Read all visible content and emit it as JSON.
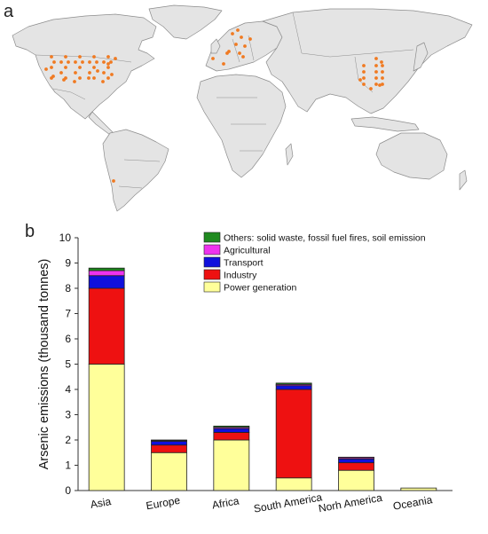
{
  "panel_a_label": "a",
  "panel_b_label": "b",
  "colors": {
    "land": "#e4e4e4",
    "border": "#8c8c8c",
    "site_dot": "#f07a22"
  },
  "chart_data": {
    "type": "bar",
    "stacked": true,
    "categories": [
      "Asia",
      "Europe",
      "Africa",
      "South America",
      "Norh America",
      "Oceania"
    ],
    "ylabel": "Arsenic emissions (thousand tonnes)",
    "xlabel": "",
    "ylim": [
      0,
      10
    ],
    "yticks": [
      "0",
      "1",
      "2",
      "3",
      "4",
      "5",
      "6",
      "7",
      "8",
      "9",
      "10"
    ],
    "legend_position": "top-right",
    "series": [
      {
        "name": "Power generation",
        "color": "#ffff9a",
        "values": [
          5.0,
          1.5,
          2.0,
          0.5,
          0.8,
          0.1
        ]
      },
      {
        "name": "Industry",
        "color": "#ee1111",
        "values": [
          3.0,
          0.3,
          0.3,
          3.5,
          0.3,
          0.0
        ]
      },
      {
        "name": "Transport",
        "color": "#1010dd",
        "values": [
          0.5,
          0.15,
          0.15,
          0.15,
          0.15,
          0.0
        ]
      },
      {
        "name": "Agricultural",
        "color": "#ee33ee",
        "values": [
          0.2,
          0.03,
          0.05,
          0.05,
          0.05,
          0.0
        ]
      },
      {
        "name": "Others: solid waste, fossil fuel fires, soil emission",
        "color": "#1f8a1f",
        "values": [
          0.1,
          0.02,
          0.05,
          0.05,
          0.02,
          0.0
        ]
      }
    ]
  }
}
